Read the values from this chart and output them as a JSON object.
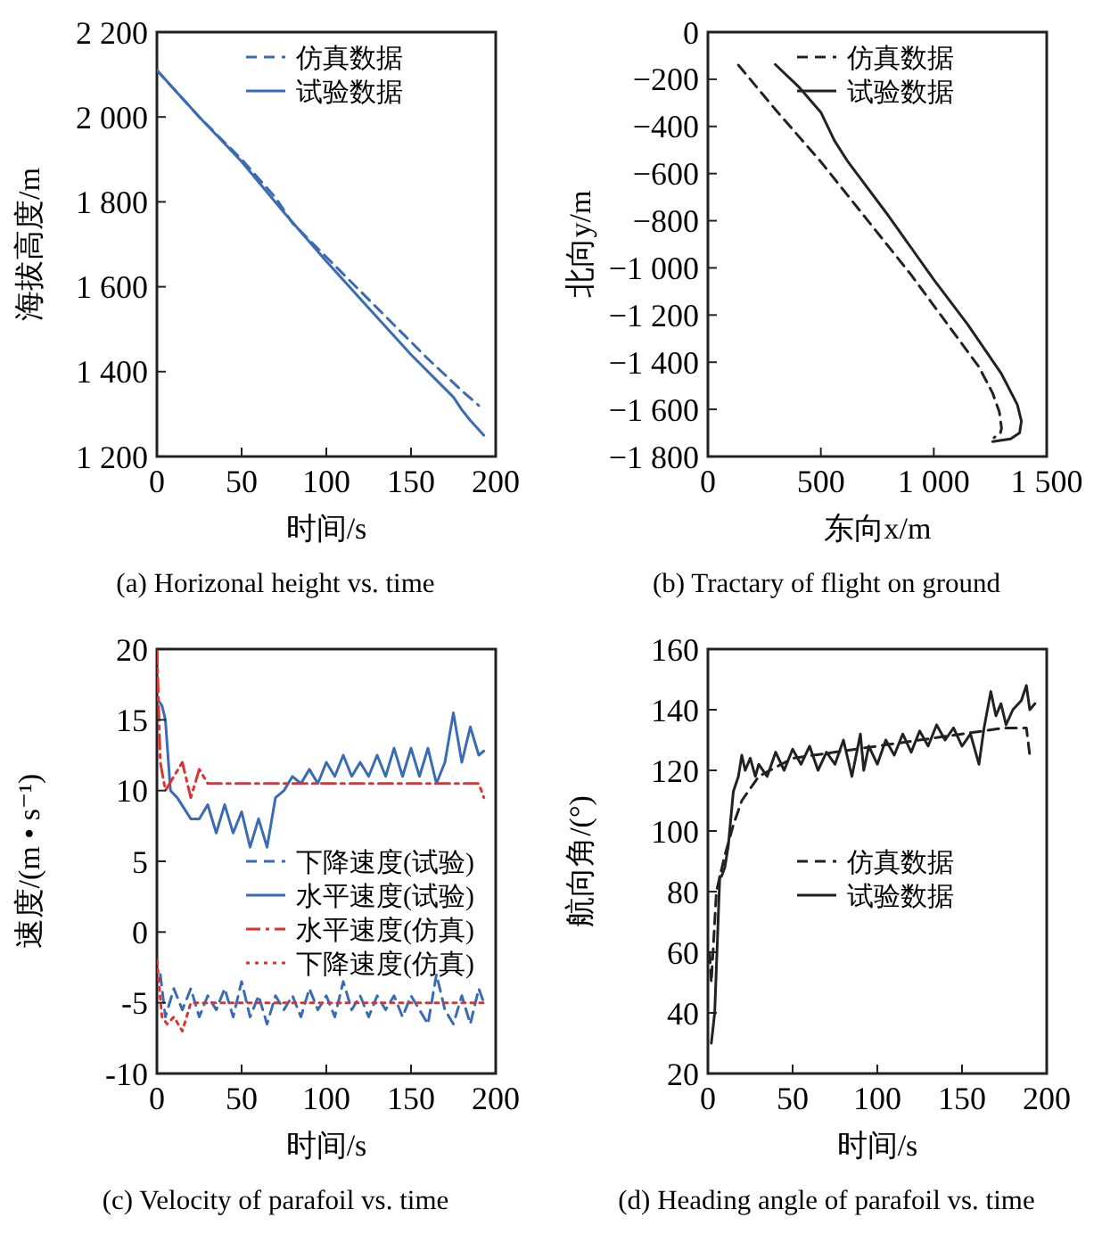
{
  "chart_data": [
    {
      "type": "line",
      "title": "(a) Horizonal height vs. time",
      "xlabel": "时间/s",
      "ylabel": "海拔高度/m",
      "xlim": [
        0,
        200
      ],
      "xticks": [
        0,
        50,
        100,
        150,
        200
      ],
      "ylim": [
        1200,
        2200
      ],
      "yticks": [
        {
          "value": 1200,
          "label": "1 200"
        },
        {
          "value": 1400,
          "label": "1 400"
        },
        {
          "value": 1600,
          "label": "1 600"
        },
        {
          "value": 1800,
          "label": "1 800"
        },
        {
          "value": 2000,
          "label": "2 000"
        },
        {
          "value": 2200,
          "label": "2 200"
        }
      ],
      "legend": "top right",
      "grid": false,
      "series": [
        {
          "name": "仿真数据",
          "color": "#3a6bb5",
          "line_style": "dashed",
          "x": [
            0,
            25,
            50,
            70,
            80,
            100,
            120,
            140,
            160,
            180,
            190
          ],
          "values": [
            2110,
            2000,
            1900,
            1810,
            1750,
            1670,
            1590,
            1510,
            1430,
            1355,
            1320
          ]
        },
        {
          "name": "试验数据",
          "color": "#3a6bb5",
          "line_style": "solid",
          "x": [
            0,
            25,
            50,
            75,
            100,
            125,
            150,
            165,
            175,
            180,
            185,
            193
          ],
          "values": [
            2110,
            2000,
            1895,
            1775,
            1660,
            1550,
            1440,
            1380,
            1340,
            1310,
            1285,
            1250
          ]
        }
      ]
    },
    {
      "type": "line",
      "title": "(b) Tractary of flight on ground",
      "xlabel": "东向x/m",
      "ylabel": "北向y/m",
      "xlim": [
        0,
        1500
      ],
      "xticks": [
        0,
        500,
        {
          "value": 1000,
          "label": "1 000"
        },
        {
          "value": 1500,
          "label": "1 500"
        }
      ],
      "ylim": [
        -1800,
        0
      ],
      "yticks": [
        {
          "value": -1800,
          "label": "−1 800"
        },
        {
          "value": -1600,
          "label": "−1 600"
        },
        {
          "value": -1400,
          "label": "−1 400"
        },
        {
          "value": -1200,
          "label": "−1 200"
        },
        {
          "value": -1000,
          "label": "−1 000"
        },
        {
          "value": -800,
          "label": "−800"
        },
        {
          "value": -600,
          "label": "−600"
        },
        {
          "value": -400,
          "label": "−400"
        },
        {
          "value": -200,
          "label": "−200"
        },
        0
      ],
      "legend": "top right",
      "grid": false,
      "series": [
        {
          "name": "仿真数据",
          "color": "#222222",
          "line_style": "dashed",
          "x": [
            135,
            300,
            500,
            700,
            900,
            1100,
            1200,
            1260,
            1290,
            1300,
            1295,
            1267
          ],
          "values": [
            -140,
            -330,
            -550,
            -790,
            -1030,
            -1290,
            -1420,
            -1530,
            -1610,
            -1680,
            -1700,
            -1720
          ]
        },
        {
          "name": "试验数据",
          "color": "#222222",
          "line_style": "solid",
          "x": [
            298,
            400,
            500,
            560,
            620,
            800,
            1000,
            1150,
            1300,
            1370,
            1388,
            1380,
            1340,
            1261
          ],
          "values": [
            -137,
            -230,
            -340,
            -460,
            -550,
            -780,
            -1050,
            -1240,
            -1450,
            -1580,
            -1650,
            -1700,
            -1725,
            -1737
          ]
        }
      ]
    },
    {
      "type": "line",
      "title": "(c) Velocity of parafoil vs. time",
      "xlabel": "时间/s",
      "ylabel": "速度/(m • s⁻¹)",
      "xlim": [
        0,
        200
      ],
      "xticks": [
        0,
        50,
        100,
        150,
        200
      ],
      "ylim": [
        -10,
        20
      ],
      "yticks": [
        -10,
        -5,
        0,
        5,
        10,
        15,
        20
      ],
      "legend": "right",
      "grid": false,
      "series": [
        {
          "name": "下降速度(试验)",
          "color": "#3a6bb5",
          "line_style": "dashed",
          "x": [
            2,
            5,
            10,
            15,
            20,
            25,
            30,
            35,
            40,
            45,
            50,
            55,
            60,
            65,
            70,
            75,
            80,
            85,
            90,
            95,
            100,
            105,
            110,
            115,
            120,
            125,
            130,
            135,
            140,
            145,
            150,
            155,
            160,
            165,
            170,
            175,
            180,
            185,
            190,
            193
          ],
          "values": [
            -3,
            -6,
            -4,
            -5.5,
            -4,
            -6,
            -4.5,
            -5.5,
            -4,
            -6,
            -3.5,
            -6,
            -4.5,
            -6.5,
            -4.5,
            -5.5,
            -4.5,
            -6,
            -4,
            -5.5,
            -4.5,
            -6,
            -3.5,
            -5.5,
            -4.5,
            -6,
            -4.5,
            -5.5,
            -4.5,
            -6,
            -4.5,
            -5.5,
            -6.5,
            -3,
            -5.5,
            -6.5,
            -4.5,
            -6.5,
            -4,
            -5
          ]
        },
        {
          "name": "水平速度(试验)",
          "color": "#3a6bb5",
          "line_style": "solid",
          "x": [
            0,
            3,
            5,
            8,
            12,
            20,
            25,
            30,
            35,
            40,
            45,
            50,
            55,
            60,
            65,
            70,
            75,
            80,
            85,
            90,
            95,
            100,
            105,
            110,
            115,
            120,
            125,
            130,
            135,
            140,
            145,
            150,
            155,
            160,
            165,
            170,
            175,
            180,
            185,
            190,
            193
          ],
          "values": [
            16.5,
            16,
            15,
            10,
            9.5,
            8,
            8,
            9,
            7,
            9,
            7,
            8.5,
            6,
            8,
            6,
            9.5,
            10,
            11,
            10.5,
            11.5,
            10.5,
            12,
            11,
            12.5,
            11,
            12,
            11,
            12.5,
            11,
            13,
            11,
            13,
            11,
            13,
            10.5,
            12,
            15.5,
            12,
            14.5,
            12.5,
            12.8
          ]
        },
        {
          "name": "水平速度(仿真)",
          "color": "#e03030",
          "line_style": "dashdot",
          "x": [
            0,
            2,
            5,
            10,
            15,
            20,
            25,
            30,
            40,
            60,
            100,
            150,
            190,
            193
          ],
          "values": [
            20,
            12,
            10,
            11,
            12,
            9.5,
            11.5,
            10.5,
            10.5,
            10.5,
            10.5,
            10.5,
            10.5,
            9.5
          ]
        },
        {
          "name": "下降速度(仿真)",
          "color": "#e03030",
          "line_style": "dotted",
          "x": [
            0,
            3,
            6,
            10,
            15,
            20,
            30,
            50,
            100,
            150,
            193
          ],
          "values": [
            -2,
            -6,
            -6.5,
            -6,
            -7,
            -5,
            -5,
            -5,
            -5,
            -5,
            -5
          ]
        }
      ]
    },
    {
      "type": "line",
      "title": "(d) Heading angle of parafoil vs. time",
      "xlabel": "时间/s",
      "ylabel": "航向角/(°)",
      "xlim": [
        0,
        200
      ],
      "xticks": [
        0,
        50,
        100,
        150,
        200
      ],
      "ylim": [
        20,
        160
      ],
      "yticks": [
        20,
        40,
        60,
        80,
        100,
        120,
        140,
        160
      ],
      "legend": "right",
      "grid": false,
      "series": [
        {
          "name": "仿真数据",
          "color": "#222222",
          "line_style": "dashed",
          "x": [
            1,
            2,
            5,
            10,
            15,
            20,
            30,
            50,
            100,
            150,
            175,
            188,
            190
          ],
          "values": [
            60,
            50,
            80,
            92,
            102,
            110,
            118,
            124,
            128,
            132,
            134,
            134,
            125
          ]
        },
        {
          "name": "试验数据",
          "color": "#222222",
          "line_style": "solid",
          "x": [
            2,
            4,
            7,
            8,
            10,
            12,
            15,
            18,
            20,
            22,
            25,
            28,
            30,
            35,
            40,
            45,
            50,
            55,
            60,
            65,
            70,
            75,
            80,
            85,
            90,
            92,
            95,
            100,
            105,
            110,
            115,
            120,
            125,
            130,
            135,
            140,
            145,
            150,
            155,
            160,
            163,
            167,
            170,
            173,
            176,
            180,
            185,
            188,
            190,
            193
          ],
          "values": [
            30,
            40,
            85,
            85,
            88,
            95,
            113,
            118,
            125,
            120,
            124,
            118,
            122,
            118,
            126,
            120,
            127,
            122,
            128,
            120,
            126,
            122,
            130,
            118,
            132,
            120,
            128,
            122,
            130,
            125,
            132,
            126,
            133,
            128,
            135,
            130,
            134,
            128,
            132,
            122,
            134,
            146,
            138,
            142,
            135,
            140,
            143,
            148,
            140,
            142
          ]
        }
      ]
    }
  ]
}
